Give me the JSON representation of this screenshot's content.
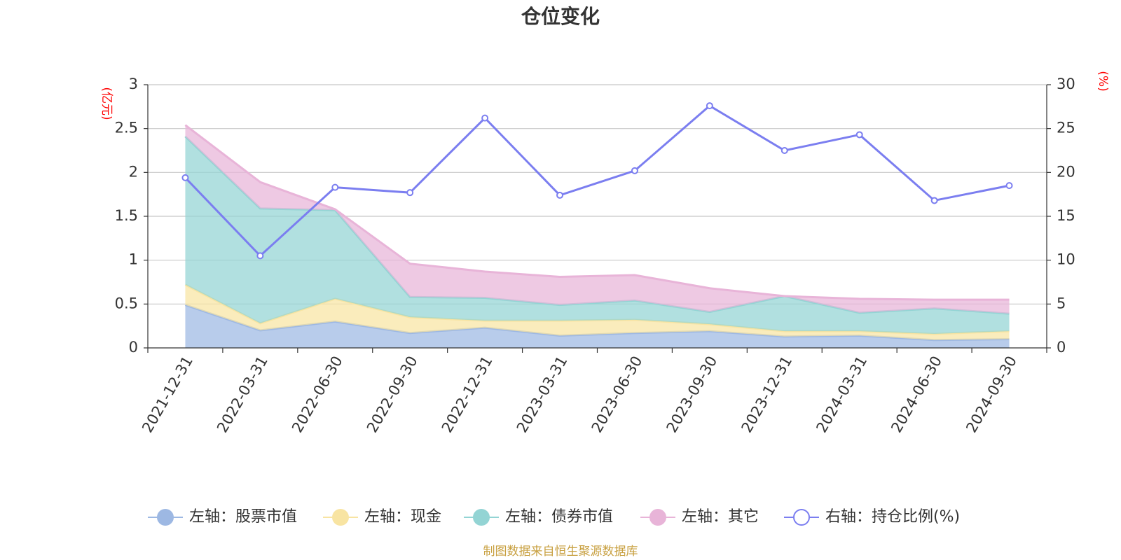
{
  "chart_data": {
    "type": "area",
    "title": "仓位变化",
    "x": [
      "2021-12-31",
      "2022-03-31",
      "2022-06-30",
      "2022-09-30",
      "2022-12-31",
      "2023-03-31",
      "2023-06-30",
      "2023-09-30",
      "2023-12-31",
      "2024-03-31",
      "2024-06-30",
      "2024-09-30"
    ],
    "left_axis": {
      "unit": "(亿元)",
      "min": 0,
      "max": 3,
      "ticks": [
        "0",
        "0.5",
        "1",
        "1.5",
        "2",
        "2.5",
        "3"
      ]
    },
    "right_axis": {
      "unit": "(%)",
      "min": 0,
      "max": 30,
      "ticks": [
        "0",
        "5",
        "10",
        "15",
        "20",
        "25",
        "30"
      ]
    },
    "stacked_series": [
      {
        "name": "左轴：股票市值",
        "color": "#9db8e3",
        "values": [
          0.49,
          0.2,
          0.3,
          0.17,
          0.23,
          0.14,
          0.17,
          0.19,
          0.13,
          0.14,
          0.09,
          0.1
        ]
      },
      {
        "name": "左轴：现金",
        "color": "#f8e4a2",
        "values": [
          0.23,
          0.08,
          0.26,
          0.18,
          0.08,
          0.17,
          0.15,
          0.08,
          0.06,
          0.05,
          0.07,
          0.09
        ]
      },
      {
        "name": "左轴：债券市值",
        "color": "#93d4d4",
        "values": [
          1.69,
          1.31,
          1.01,
          0.23,
          0.26,
          0.18,
          0.22,
          0.14,
          0.4,
          0.21,
          0.29,
          0.2
        ]
      },
      {
        "name": "左轴：其它",
        "color": "#e8b4d8",
        "values": [
          0.13,
          0.3,
          0.01,
          0.38,
          0.3,
          0.32,
          0.29,
          0.27,
          0.0,
          0.16,
          0.1,
          0.16
        ]
      }
    ],
    "line_series": {
      "name": "右轴：持仓比例(%)",
      "color": "#7b7ef0",
      "values": [
        19.4,
        10.5,
        18.3,
        17.7,
        26.2,
        17.4,
        20.2,
        27.6,
        22.5,
        24.3,
        16.8,
        18.5
      ]
    },
    "grid": true,
    "legend_position": "bottom"
  },
  "source_note": "制图数据来自恒生聚源数据库"
}
